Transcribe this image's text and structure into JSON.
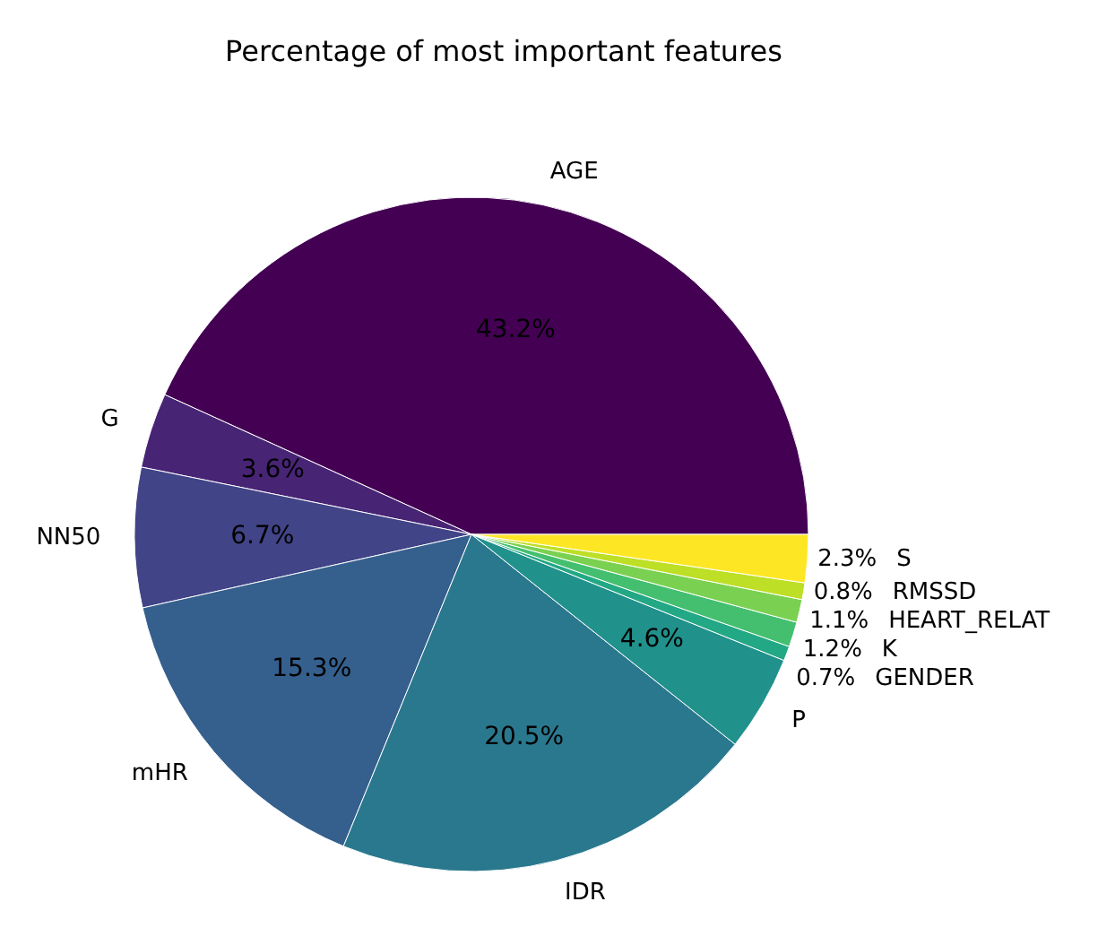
{
  "chart_data": {
    "type": "pie",
    "title": "Percentage of most important features",
    "categories": [
      "AGE",
      "G",
      "NN50",
      "mHR",
      "IDR",
      "P",
      "GENDER",
      "K",
      "HEART_RELAT",
      "RMSSD",
      "S"
    ],
    "values": [
      43.2,
      3.6,
      6.7,
      15.3,
      20.5,
      4.6,
      0.7,
      1.2,
      1.1,
      0.8,
      2.3
    ],
    "colors": [
      "#440154",
      "#482475",
      "#414487",
      "#355f8d",
      "#2a788e",
      "#21918c",
      "#22a884",
      "#44bf70",
      "#7ad151",
      "#bddf26",
      "#fde725"
    ],
    "value_labels": [
      "43.2%",
      "3.6%",
      "6.7%",
      "15.3%",
      "20.5%",
      "4.6%",
      "0.7%",
      "1.2%",
      "1.1%",
      "0.8%",
      "2.3%"
    ],
    "legend": false
  }
}
